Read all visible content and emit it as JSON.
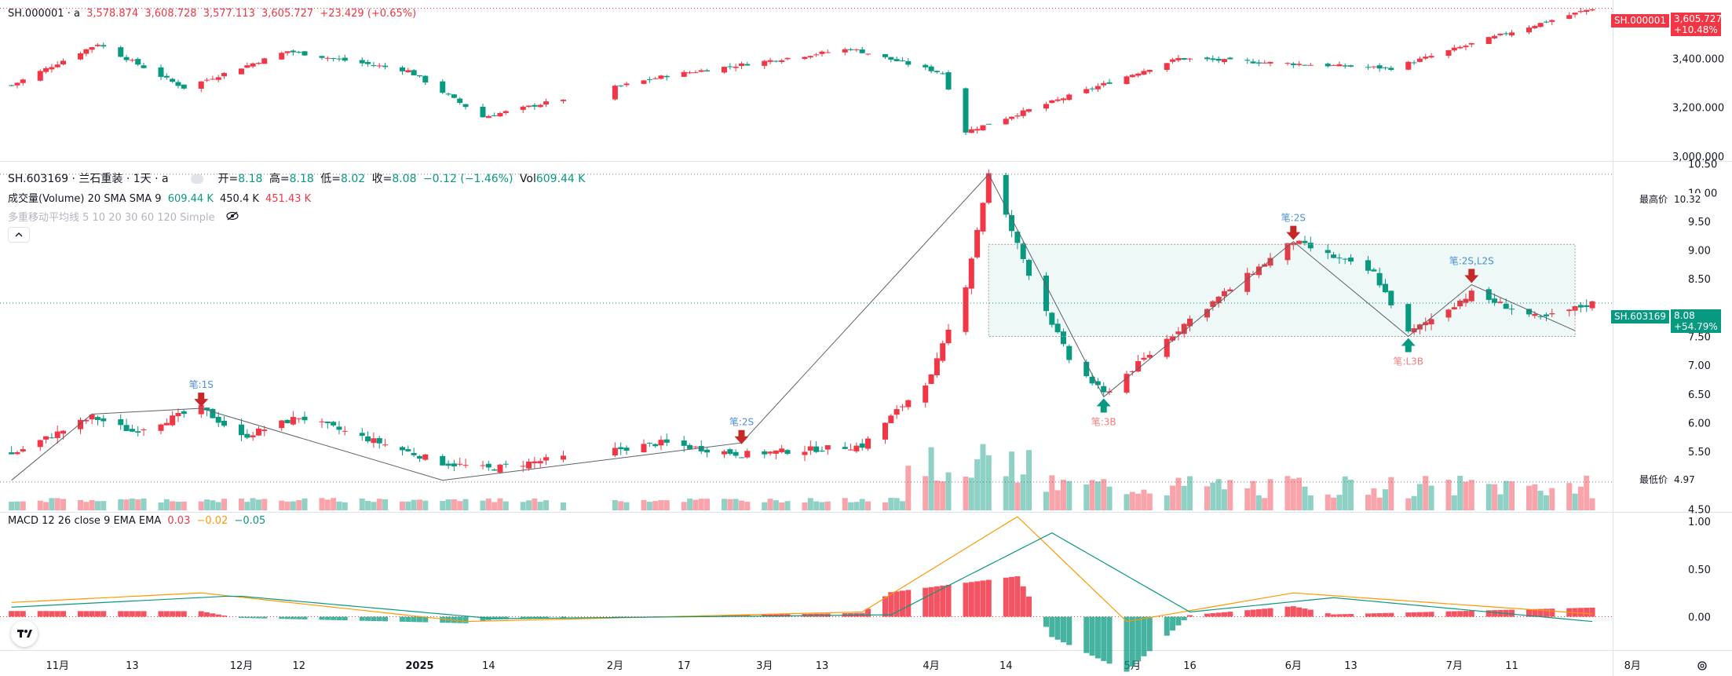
{
  "colors": {
    "up": "#f23645",
    "down": "#089981",
    "accent": "#2962ff",
    "macd": "#ff9800",
    "signal": "#089981"
  },
  "index_pane": {
    "symbol": "SH.000001 · a",
    "open": "3,578.874",
    "high": "3,608.728",
    "low": "3,577.113",
    "close": "3,605.727",
    "change": "+23.429 (+0.65%)",
    "axis_labels": [
      "3,400.000",
      "3,200.000",
      "3,000.000"
    ],
    "price_tag_symbol": "SH.000001",
    "price_tag_value": "3,605.727",
    "price_tag_change": "+10.48%"
  },
  "stock_pane": {
    "title": "SH.603169 · 兰石重装 · 1天 · a",
    "open_label": "开=",
    "open": "8.18",
    "high_label": "高=",
    "high": "8.18",
    "low_label": "低=",
    "low": "8.02",
    "close_label": "收=",
    "close": "8.08",
    "change": "−0.12 (−1.46%)",
    "vol_label": "Vol",
    "vol": "609.44 K",
    "volume_indicator": "成交量(Volume) 20 SMA SMA 9",
    "volume_v1": "609.44 K",
    "volume_v2": "450.4 K",
    "volume_v3": "451.43 K",
    "ma_indicator": "多重移动平均线 5 10 20 30 60 120 Simple",
    "axis_labels": [
      "10.50",
      "10.00",
      "9.50",
      "9.00",
      "8.50",
      "7.50",
      "7.00",
      "6.50",
      "6.00",
      "5.50",
      "4.50"
    ],
    "high_tag_label": "最高价",
    "high_tag_value": "10.32",
    "low_tag_label": "最低价",
    "low_tag_value": "4.97",
    "price_tag_symbol": "SH.603169",
    "price_tag_value": "8.08",
    "price_tag_change": "+54.79%",
    "annotations": [
      "笔:1S",
      "笔:2S",
      "笔:2S",
      "笔:3B",
      "笔:2S,L2S",
      "笔:L3B"
    ]
  },
  "macd_pane": {
    "title": "MACD 12 26 close 9 EMA EMA",
    "v1": "0.03",
    "v2": "−0.02",
    "v3": "−0.05",
    "axis_labels": [
      "1.00",
      "0.50",
      "0.00"
    ]
  },
  "time_axis": [
    "11月",
    "13",
    "12月",
    "12",
    "2025",
    "14",
    "2月",
    "17",
    "3月",
    "13",
    "4月",
    "14",
    "5月",
    "16",
    "6月",
    "13",
    "7月",
    "11",
    "8月"
  ],
  "chart_data": [
    {
      "type": "candlestick",
      "title": "SH.000001",
      "y_ticks": [
        3000,
        3200,
        3400
      ],
      "ylim": [
        2980,
        3640
      ],
      "approx_path": [
        [
          "2024-10-23",
          3290
        ],
        [
          "2024-11-07",
          3460
        ],
        [
          "2024-11-22",
          3280
        ],
        [
          "2024-12-10",
          3430
        ],
        [
          "2024-12-31",
          3350
        ],
        [
          "2025-01-13",
          3160
        ],
        [
          "2025-02-14",
          3330
        ],
        [
          "2025-03-18",
          3440
        ],
        [
          "2025-04-03",
          3340
        ],
        [
          "2025-04-07",
          3100
        ],
        [
          "2025-05-14",
          3400
        ],
        [
          "2025-06-20",
          3360
        ],
        [
          "2025-07-11",
          3510
        ],
        [
          "2025-07-25",
          3605.727
        ]
      ]
    },
    {
      "type": "candlestick",
      "title": "SH.603169 · 兰石重装 · 1天",
      "y_ticks": [
        4.5,
        5.5,
        6.0,
        6.5,
        7.0,
        7.5,
        8.5,
        9.0,
        9.5,
        10.0,
        10.5
      ],
      "ylim": [
        4.45,
        10.55
      ],
      "highest": 10.32,
      "lowest": 4.97,
      "last": 8.08,
      "approx_path": [
        [
          "2024-10-23",
          5.45
        ],
        [
          "2024-11-06",
          6.1
        ],
        [
          "2024-11-13",
          5.85
        ],
        [
          "2024-11-25",
          6.25
        ],
        [
          "2024-12-02",
          5.75
        ],
        [
          "2024-12-12",
          6.1
        ],
        [
          "2025-01-06",
          5.3
        ],
        [
          "2025-01-14",
          5.2
        ],
        [
          "2025-02-13",
          5.65
        ],
        [
          "2025-02-27",
          5.45
        ],
        [
          "2025-03-20",
          5.6
        ],
        [
          "2025-04-01",
          6.8
        ],
        [
          "2025-04-07",
          8.4
        ],
        [
          "2025-04-11",
          10.32
        ],
        [
          "2025-04-18",
          8.6
        ],
        [
          "2025-04-25",
          7.1
        ],
        [
          "2025-05-01",
          6.5
        ],
        [
          "2025-05-16",
          7.8
        ],
        [
          "2025-06-03",
          9.15
        ],
        [
          "2025-06-17",
          8.6
        ],
        [
          "2025-06-23",
          7.55
        ],
        [
          "2025-07-04",
          8.25
        ],
        [
          "2025-07-16",
          7.8
        ],
        [
          "2025-07-25",
          8.08
        ]
      ],
      "strokes": [
        {
          "label": "笔:1S",
          "date": "2024-11-25",
          "value": 6.25
        },
        {
          "label": "笔:2S",
          "date": "2025-02-27",
          "value": 5.6
        },
        {
          "label": "笔:3B",
          "date": "2025-05-01",
          "value": 6.45
        },
        {
          "label": "笔:2S",
          "date": "2025-06-03",
          "value": 9.15
        },
        {
          "label": "笔:L3B",
          "date": "2025-06-23",
          "value": 7.5
        },
        {
          "label": "笔:2S,L2S",
          "date": "2025-07-04",
          "value": 8.4
        }
      ],
      "zone": {
        "from": "2025-04-11",
        "to": "2025-07-22",
        "low": 7.5,
        "high": 9.1
      }
    },
    {
      "type": "line",
      "title": "MACD 12 26 close 9 EMA EMA",
      "y_ticks": [
        0,
        0.5,
        1.0
      ],
      "ylim": [
        -0.35,
        1.1
      ],
      "series": [
        {
          "name": "MACD",
          "values_by_date": [
            [
              "2024-10-23",
              0.15
            ],
            [
              "2024-11-25",
              0.25
            ],
            [
              "2025-01-10",
              -0.05
            ],
            [
              "2025-03-20",
              0.05
            ],
            [
              "2025-04-16",
              1.05
            ],
            [
              "2025-05-05",
              -0.05
            ],
            [
              "2025-06-03",
              0.25
            ],
            [
              "2025-07-25",
              0.03
            ]
          ]
        },
        {
          "name": "Signal",
          "values_by_date": [
            [
              "2024-10-23",
              0.1
            ],
            [
              "2024-12-01",
              0.22
            ],
            [
              "2025-01-15",
              -0.02
            ],
            [
              "2025-03-25",
              0.02
            ],
            [
              "2025-04-22",
              0.88
            ],
            [
              "2025-05-16",
              0.05
            ],
            [
              "2025-06-10",
              0.2
            ],
            [
              "2025-07-25",
              -0.05
            ]
          ]
        }
      ]
    }
  ]
}
